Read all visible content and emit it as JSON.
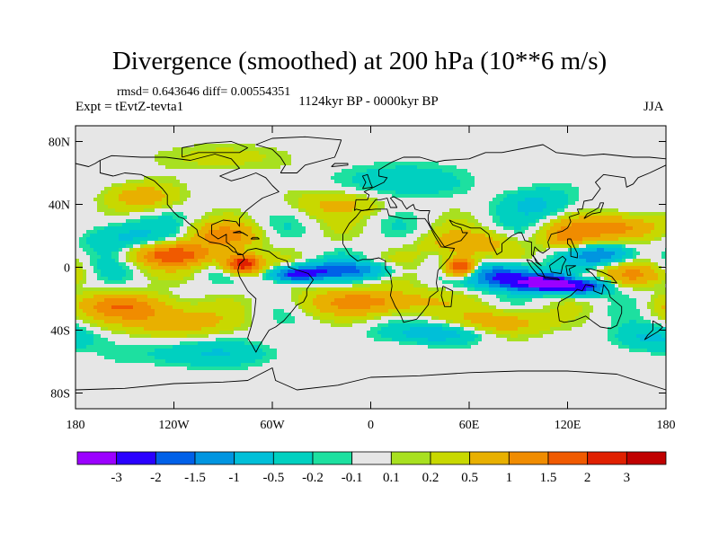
{
  "chart_data": {
    "type": "heatmap",
    "title": "Divergence (smoothed) at 200 hPa (10**6 m/s)",
    "stats_text": "rmsd= 0.643646 diff= 0.00554351",
    "experiment": "Expt = tEvtZ-tevta1",
    "period": "1124kyr BP - 0000kyr BP",
    "season": "JJA",
    "xlim": [
      -180,
      180
    ],
    "ylim": [
      -90,
      90
    ],
    "x_ticks": [
      {
        "value": -180,
        "label": "180"
      },
      {
        "value": -120,
        "label": "120W"
      },
      {
        "value": -60,
        "label": "60W"
      },
      {
        "value": 0,
        "label": "0"
      },
      {
        "value": 60,
        "label": "60E"
      },
      {
        "value": 120,
        "label": "120E"
      },
      {
        "value": 180,
        "label": "180"
      }
    ],
    "y_ticks": [
      {
        "value": 80,
        "label": "80N"
      },
      {
        "value": 40,
        "label": "40N"
      },
      {
        "value": 0,
        "label": "0"
      },
      {
        "value": -40,
        "label": "40S"
      },
      {
        "value": -80,
        "label": "80S"
      }
    ],
    "levels": [
      -3,
      -2,
      -1.5,
      -1,
      -0.5,
      -0.2,
      -0.1,
      0.1,
      0.2,
      0.5,
      1,
      1.5,
      2,
      3
    ],
    "level_labels": [
      "-3",
      "-2",
      "-1.5",
      "-1",
      "-0.5",
      "-0.2",
      "-0.1",
      "0.1",
      "0.2",
      "0.5",
      "1",
      "1.5",
      "2",
      "3"
    ],
    "colors": [
      "#9b00ff",
      "#2a00ff",
      "#0060e8",
      "#0095e0",
      "#00bfd8",
      "#00d0c0",
      "#1de0a0",
      "#e6e6e6",
      "#a8e020",
      "#c8d800",
      "#e8b000",
      "#f08c00",
      "#f05a00",
      "#e02000",
      "#c00000"
    ],
    "anomalies": [
      {
        "lon": 105,
        "lat": -10,
        "amp": -3.6,
        "rlon": 22,
        "rlat": 5
      },
      {
        "lon": 80,
        "lat": -5,
        "amp": -2.0,
        "rlon": 20,
        "rlat": 7
      },
      {
        "lon": 130,
        "lat": -12,
        "amp": -1.8,
        "rlon": 14,
        "rlat": 5
      },
      {
        "lon": 55,
        "lat": 0,
        "amp": 2.6,
        "rlon": 9,
        "rlat": 6
      },
      {
        "lon": 128,
        "lat": -7,
        "amp": 1.2,
        "rlon": 9,
        "rlat": 3
      },
      {
        "lon": -78,
        "lat": 2,
        "amp": 2.6,
        "rlon": 11,
        "rlat": 6
      },
      {
        "lon": -120,
        "lat": 8,
        "amp": 1.8,
        "rlon": 25,
        "rlat": 7
      },
      {
        "lon": -90,
        "lat": 20,
        "amp": 1.2,
        "rlon": 20,
        "rlat": 8
      },
      {
        "lon": -20,
        "lat": -2,
        "amp": -1.6,
        "rlon": 30,
        "rlat": 5
      },
      {
        "lon": -45,
        "lat": -5,
        "amp": -2.2,
        "rlon": 14,
        "rlat": 4
      },
      {
        "lon": 0,
        "lat": -22,
        "amp": 1.2,
        "rlon": 40,
        "rlat": 8
      },
      {
        "lon": 150,
        "lat": 25,
        "amp": 1.4,
        "rlon": 25,
        "rlat": 8
      },
      {
        "lon": 140,
        "lat": 8,
        "amp": -1.5,
        "rlon": 18,
        "rlat": 6
      },
      {
        "lon": 120,
        "lat": 20,
        "amp": 1.0,
        "rlon": 15,
        "rlat": 8
      },
      {
        "lon": 60,
        "lat": 15,
        "amp": 0.9,
        "rlon": 25,
        "rlat": 8
      },
      {
        "lon": -150,
        "lat": -25,
        "amp": 1.3,
        "rlon": 30,
        "rlat": 8
      },
      {
        "lon": -120,
        "lat": -35,
        "amp": 0.9,
        "rlon": 30,
        "rlat": 8
      },
      {
        "lon": 80,
        "lat": -35,
        "amp": 0.9,
        "rlon": 25,
        "rlat": 8
      },
      {
        "lon": 40,
        "lat": -42,
        "amp": -0.8,
        "rlon": 30,
        "rlat": 6
      },
      {
        "lon": -150,
        "lat": 20,
        "amp": -0.7,
        "rlon": 25,
        "rlat": 10
      },
      {
        "lon": -140,
        "lat": 45,
        "amp": 0.8,
        "rlon": 20,
        "rlat": 8
      },
      {
        "lon": -20,
        "lat": 40,
        "amp": 0.6,
        "rlon": 25,
        "rlat": 8
      },
      {
        "lon": 20,
        "lat": 55,
        "amp": -0.5,
        "rlon": 30,
        "rlat": 10
      },
      {
        "lon": -90,
        "lat": 70,
        "amp": 0.3,
        "rlon": 40,
        "rlat": 8
      },
      {
        "lon": 100,
        "lat": 40,
        "amp": -0.6,
        "rlon": 20,
        "rlat": 10
      },
      {
        "lon": -100,
        "lat": -55,
        "amp": -0.5,
        "rlon": 40,
        "rlat": 8
      },
      {
        "lon": 170,
        "lat": -45,
        "amp": -0.6,
        "rlon": 20,
        "rlat": 8
      },
      {
        "lon": 160,
        "lat": -5,
        "amp": 0.9,
        "rlon": 20,
        "rlat": 6
      }
    ]
  }
}
